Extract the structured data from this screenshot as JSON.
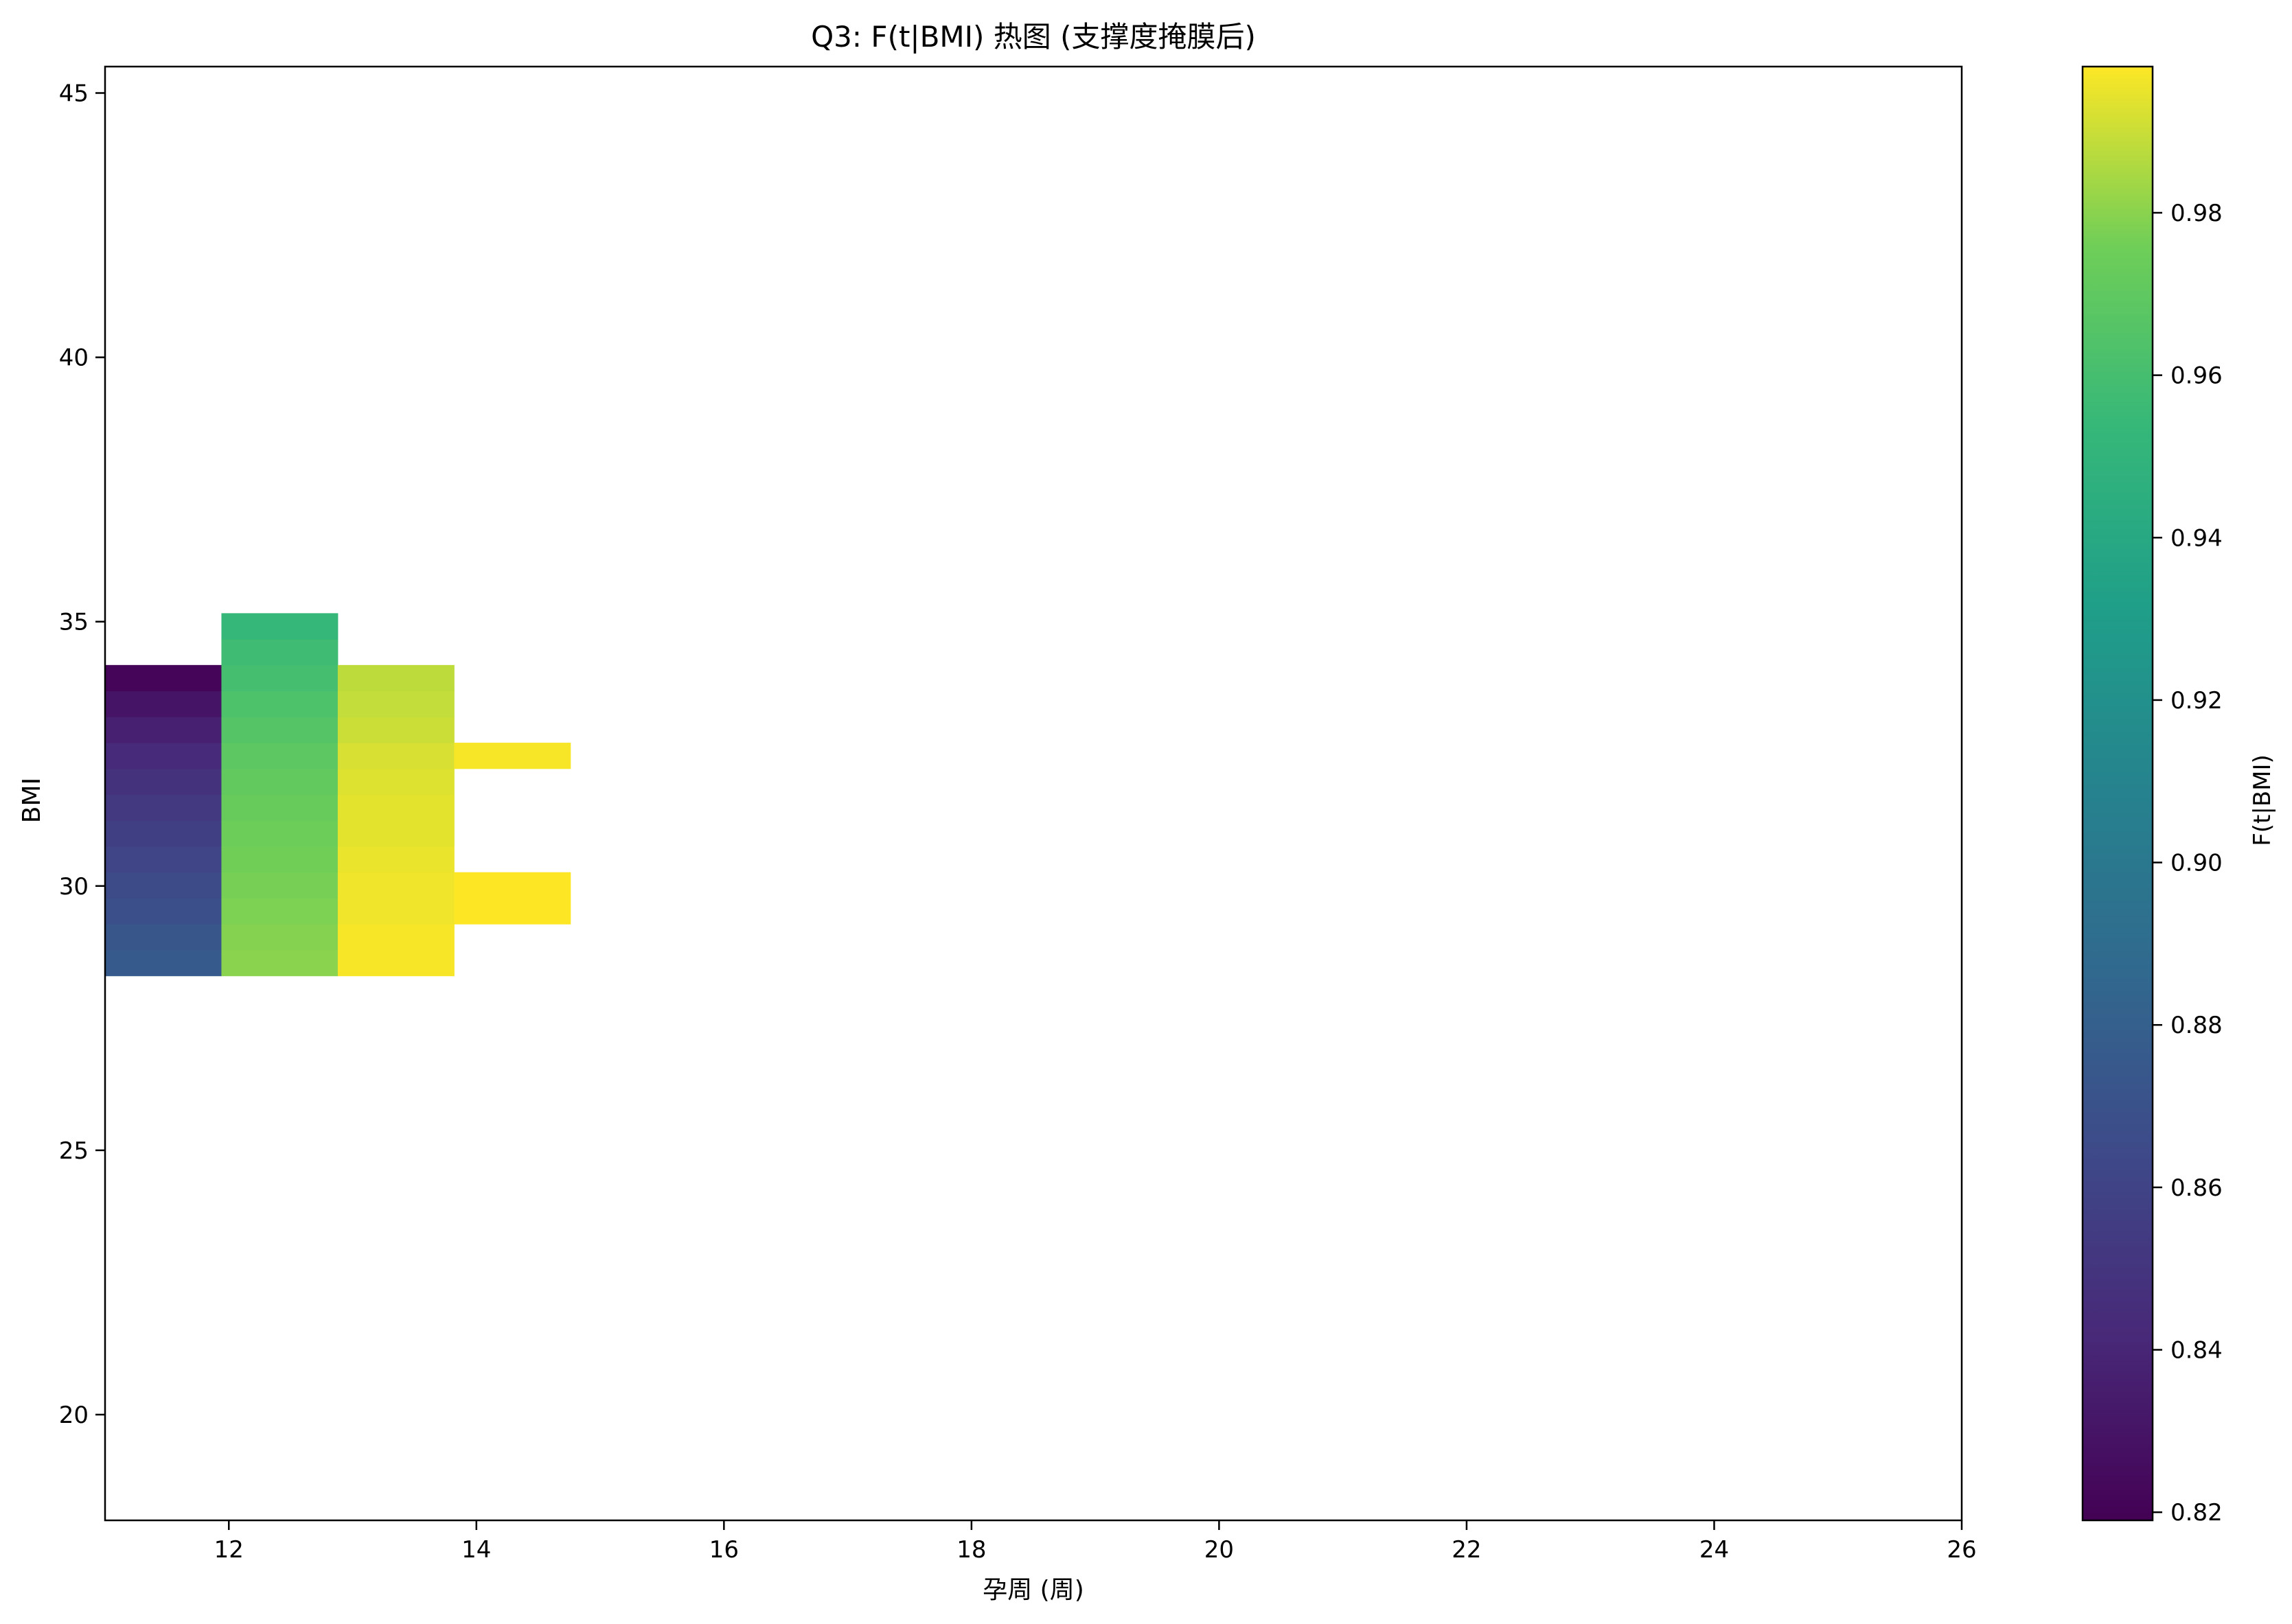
{
  "chart_data": {
    "type": "heatmap",
    "title": "Q3: F(t|BMI) 热图 (支撑度掩膜后)",
    "xlabel": "孕周 (周)",
    "ylabel": "BMI",
    "xlim": [
      11,
      26
    ],
    "ylim": [
      18,
      45.5
    ],
    "xticks": [
      12,
      14,
      16,
      18,
      20,
      22,
      24,
      26
    ],
    "yticks": [
      20,
      25,
      30,
      35,
      40,
      45
    ],
    "colorbar": {
      "label": "F(t|BMI)",
      "colormap": "viridis",
      "range": [
        0.819,
        0.998
      ],
      "ticks": [
        0.82,
        0.84,
        0.86,
        0.88,
        0.9,
        0.92,
        0.94,
        0.96,
        0.98
      ],
      "tick_labels": [
        "0.82",
        "0.84",
        "0.86",
        "0.88",
        "0.90",
        "0.92",
        "0.94",
        "0.96",
        "0.98"
      ]
    },
    "cell_height": 0.49,
    "columns": [
      {
        "x_start": 11.0,
        "x_end": 11.94,
        "cells": [
          {
            "y": 28.3,
            "value": 0.876
          },
          {
            "y": 28.79,
            "value": 0.873
          },
          {
            "y": 29.28,
            "value": 0.869
          },
          {
            "y": 29.77,
            "value": 0.865
          },
          {
            "y": 30.26,
            "value": 0.861
          },
          {
            "y": 30.75,
            "value": 0.857
          },
          {
            "y": 31.24,
            "value": 0.853
          },
          {
            "y": 31.73,
            "value": 0.848
          },
          {
            "y": 32.22,
            "value": 0.843
          },
          {
            "y": 32.71,
            "value": 0.837
          },
          {
            "y": 33.2,
            "value": 0.83
          },
          {
            "y": 33.69,
            "value": 0.822
          }
        ]
      },
      {
        "x_start": 11.94,
        "x_end": 12.88,
        "cells": [
          {
            "y": 28.3,
            "value": 0.98
          },
          {
            "y": 28.79,
            "value": 0.979
          },
          {
            "y": 29.28,
            "value": 0.978
          },
          {
            "y": 29.77,
            "value": 0.977
          },
          {
            "y": 30.26,
            "value": 0.976
          },
          {
            "y": 30.75,
            "value": 0.975
          },
          {
            "y": 31.24,
            "value": 0.973
          },
          {
            "y": 31.73,
            "value": 0.971
          },
          {
            "y": 32.22,
            "value": 0.969
          },
          {
            "y": 32.71,
            "value": 0.966
          },
          {
            "y": 33.2,
            "value": 0.963
          },
          {
            "y": 33.69,
            "value": 0.96
          },
          {
            "y": 34.18,
            "value": 0.957
          },
          {
            "y": 34.67,
            "value": 0.953
          }
        ]
      },
      {
        "x_start": 12.88,
        "x_end": 13.82,
        "cells": [
          {
            "y": 28.3,
            "value": 0.997
          },
          {
            "y": 28.79,
            "value": 0.997
          },
          {
            "y": 29.28,
            "value": 0.996
          },
          {
            "y": 29.77,
            "value": 0.996
          },
          {
            "y": 30.26,
            "value": 0.995
          },
          {
            "y": 30.75,
            "value": 0.994
          },
          {
            "y": 31.24,
            "value": 0.994
          },
          {
            "y": 31.73,
            "value": 0.993
          },
          {
            "y": 32.22,
            "value": 0.992
          },
          {
            "y": 32.71,
            "value": 0.99
          },
          {
            "y": 33.2,
            "value": 0.989
          },
          {
            "y": 33.69,
            "value": 0.988
          }
        ]
      },
      {
        "x_start": 13.82,
        "x_end": 14.76,
        "cells": [
          {
            "y": 29.28,
            "value": 0.998
          },
          {
            "y": 29.77,
            "value": 0.998
          },
          {
            "y": 32.22,
            "value": 0.997
          }
        ]
      }
    ]
  }
}
